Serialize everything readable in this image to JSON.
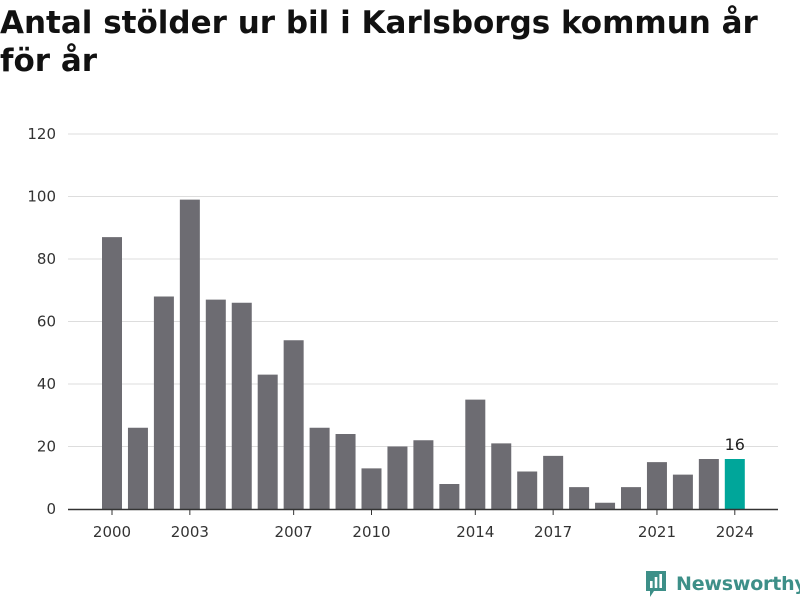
{
  "title": "Antal stölder ur bil i Karlsborgs kommun år för år",
  "brand": {
    "name": "Newsworthy",
    "icon": "newsworthy-logo-icon"
  },
  "colors": {
    "bar": "#6d6c72",
    "highlight": "#00a69a",
    "grid": "#dddddd",
    "brand": "#3d8f88"
  },
  "chart_data": {
    "type": "bar",
    "title": "Antal stölder ur bil i Karlsborgs kommun år för år",
    "categories": [
      "2000",
      "2001",
      "2002",
      "2003",
      "2004",
      "2005",
      "2006",
      "2007",
      "2008",
      "2009",
      "2010",
      "2011",
      "2012",
      "2013",
      "2014",
      "2015",
      "2016",
      "2017",
      "2018",
      "2019",
      "2020",
      "2021",
      "2022",
      "2023",
      "2024"
    ],
    "values": [
      87,
      26,
      68,
      99,
      67,
      66,
      43,
      54,
      26,
      24,
      13,
      20,
      22,
      8,
      35,
      21,
      12,
      17,
      7,
      2,
      7,
      15,
      11,
      16,
      16
    ],
    "highlight_index": 24,
    "highlight_label": "16",
    "xticks": [
      "2000",
      "2003",
      "2007",
      "2010",
      "2014",
      "2017",
      "2021",
      "2024"
    ],
    "yticks": [
      "0",
      "20",
      "40",
      "60",
      "80",
      "100",
      "120"
    ],
    "ylim": [
      0,
      120
    ],
    "xlabel": "",
    "ylabel": "",
    "grid": true,
    "legend": "none"
  }
}
